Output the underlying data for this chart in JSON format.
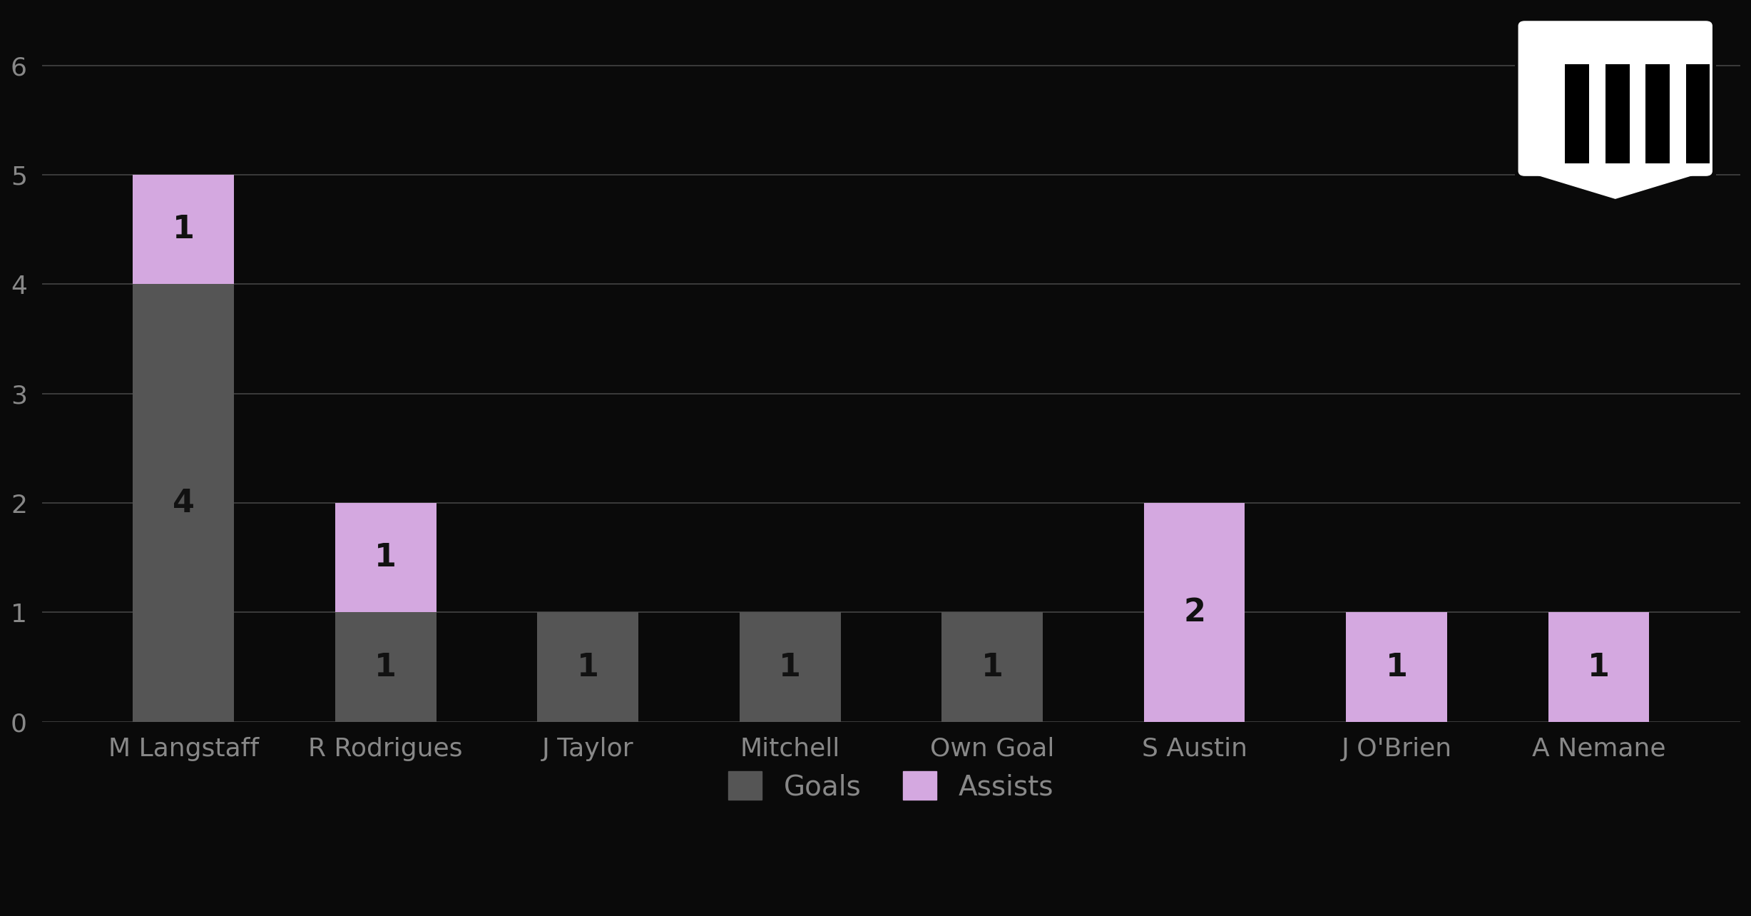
{
  "categories": [
    "M Langstaff",
    "R Rodrigues",
    "J Taylor",
    "Mitchell",
    "Own Goal",
    "S Austin",
    "J O'Brien",
    "A Nemane"
  ],
  "goals": [
    4,
    1,
    1,
    1,
    1,
    0,
    0,
    0
  ],
  "assists": [
    1,
    1,
    0,
    0,
    0,
    2,
    1,
    1
  ],
  "goals_color": "#555555",
  "assists_color": "#d4a8e0",
  "background_color": "#0a0a0a",
  "text_color": "#888888",
  "bar_label_color": "#111111",
  "ylim": [
    0,
    6.5
  ],
  "yticks": [
    0,
    1,
    2,
    3,
    4,
    5,
    6
  ],
  "grid_color": "#444444",
  "bar_width": 0.5,
  "legend_labels": [
    "Goals",
    "Assists"
  ],
  "label_fontsize": 28,
  "tick_fontsize": 26,
  "bar_label_fontsize": 32
}
